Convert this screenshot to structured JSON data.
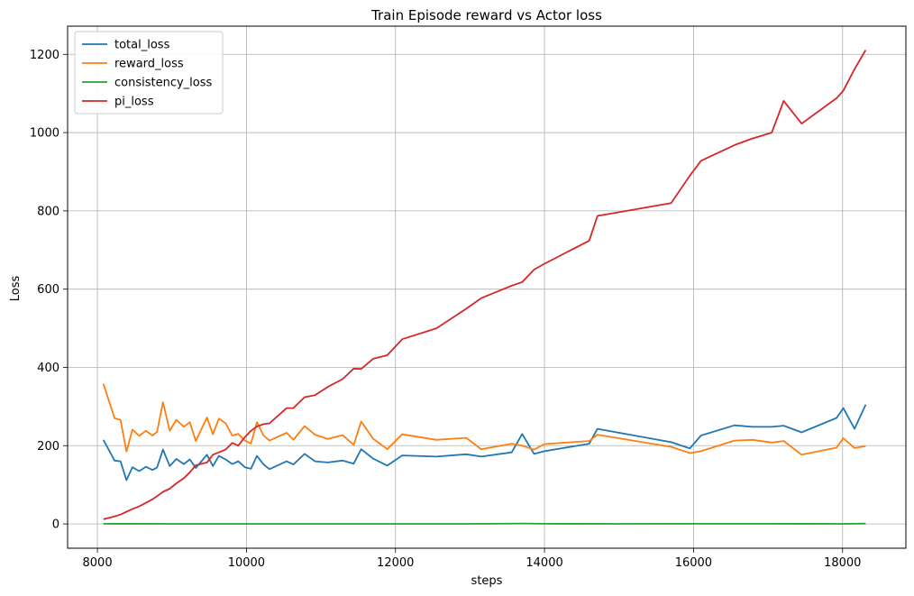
{
  "chart_data": {
    "type": "line",
    "title": "Train Episode reward vs Actor loss",
    "xlabel": "steps",
    "ylabel": "Loss",
    "xlim": [
      7600,
      18850
    ],
    "ylim": [
      -62,
      1272
    ],
    "xticks": [
      8000,
      10000,
      12000,
      14000,
      16000,
      18000
    ],
    "yticks": [
      0,
      200,
      400,
      600,
      800,
      1000,
      1200
    ],
    "grid": true,
    "legend_position": "top-left",
    "series": [
      {
        "name": "total_loss",
        "color": "#1f77b4",
        "points": [
          [
            8080,
            215
          ],
          [
            8230,
            162
          ],
          [
            8310,
            160
          ],
          [
            8390,
            112
          ],
          [
            8470,
            145
          ],
          [
            8560,
            135
          ],
          [
            8650,
            146
          ],
          [
            8740,
            138
          ],
          [
            8800,
            144
          ],
          [
            8880,
            190
          ],
          [
            8970,
            148
          ],
          [
            9060,
            166
          ],
          [
            9160,
            153
          ],
          [
            9240,
            165
          ],
          [
            9320,
            143
          ],
          [
            9470,
            177
          ],
          [
            9550,
            148
          ],
          [
            9630,
            174
          ],
          [
            9720,
            165
          ],
          [
            9810,
            153
          ],
          [
            9890,
            160
          ],
          [
            9980,
            145
          ],
          [
            10060,
            141
          ],
          [
            10140,
            174
          ],
          [
            10230,
            152
          ],
          [
            10310,
            140
          ],
          [
            10540,
            160
          ],
          [
            10630,
            152
          ],
          [
            10780,
            179
          ],
          [
            10920,
            160
          ],
          [
            11090,
            157
          ],
          [
            11290,
            162
          ],
          [
            11440,
            154
          ],
          [
            11540,
            191
          ],
          [
            11700,
            167
          ],
          [
            11890,
            149
          ],
          [
            12090,
            175
          ],
          [
            12550,
            172
          ],
          [
            12950,
            178
          ],
          [
            13150,
            172
          ],
          [
            13560,
            183
          ],
          [
            13700,
            230
          ],
          [
            13860,
            179
          ],
          [
            14000,
            186
          ],
          [
            14600,
            205
          ],
          [
            14710,
            243
          ],
          [
            15700,
            209
          ],
          [
            15950,
            193
          ],
          [
            16100,
            226
          ],
          [
            16550,
            252
          ],
          [
            16790,
            248
          ],
          [
            17050,
            248
          ],
          [
            17210,
            251
          ],
          [
            17450,
            234
          ],
          [
            17920,
            271
          ],
          [
            18010,
            296
          ],
          [
            18160,
            243
          ],
          [
            18310,
            305
          ]
        ]
      },
      {
        "name": "reward_loss",
        "color": "#ff7f0e",
        "points": [
          [
            8080,
            358
          ],
          [
            8230,
            270
          ],
          [
            8310,
            266
          ],
          [
            8390,
            185
          ],
          [
            8470,
            241
          ],
          [
            8560,
            225
          ],
          [
            8650,
            238
          ],
          [
            8740,
            226
          ],
          [
            8800,
            235
          ],
          [
            8880,
            311
          ],
          [
            8970,
            238
          ],
          [
            9060,
            266
          ],
          [
            9160,
            248
          ],
          [
            9240,
            260
          ],
          [
            9320,
            212
          ],
          [
            9470,
            272
          ],
          [
            9550,
            229
          ],
          [
            9630,
            269
          ],
          [
            9720,
            257
          ],
          [
            9810,
            226
          ],
          [
            9890,
            230
          ],
          [
            9980,
            213
          ],
          [
            10060,
            205
          ],
          [
            10140,
            260
          ],
          [
            10230,
            226
          ],
          [
            10310,
            213
          ],
          [
            10540,
            233
          ],
          [
            10630,
            215
          ],
          [
            10780,
            250
          ],
          [
            10920,
            228
          ],
          [
            11090,
            217
          ],
          [
            11290,
            227
          ],
          [
            11440,
            202
          ],
          [
            11540,
            262
          ],
          [
            11700,
            218
          ],
          [
            11890,
            191
          ],
          [
            12090,
            229
          ],
          [
            12550,
            215
          ],
          [
            12950,
            220
          ],
          [
            13150,
            191
          ],
          [
            13560,
            205
          ],
          [
            13700,
            200
          ],
          [
            13860,
            190
          ],
          [
            14000,
            204
          ],
          [
            14600,
            212
          ],
          [
            14710,
            228
          ],
          [
            15700,
            197
          ],
          [
            15950,
            181
          ],
          [
            16100,
            186
          ],
          [
            16550,
            213
          ],
          [
            16790,
            215
          ],
          [
            17050,
            208
          ],
          [
            17210,
            212
          ],
          [
            17450,
            177
          ],
          [
            17920,
            195
          ],
          [
            18010,
            219
          ],
          [
            18160,
            194
          ],
          [
            18310,
            199
          ]
        ]
      },
      {
        "name": "consistency_loss",
        "color": "#2ca02c",
        "points": [
          [
            8080,
            0.5
          ],
          [
            9000,
            0.3
          ],
          [
            10000,
            0.3
          ],
          [
            11000,
            0.3
          ],
          [
            12000,
            0.3
          ],
          [
            13000,
            0.3
          ],
          [
            13700,
            1.2
          ],
          [
            14000,
            0.4
          ],
          [
            15000,
            0.3
          ],
          [
            16000,
            0.5
          ],
          [
            17000,
            0.4
          ],
          [
            18000,
            0.3
          ],
          [
            18310,
            0.8
          ]
        ]
      },
      {
        "name": "pi_loss",
        "color": "#d62728",
        "points": [
          [
            8080,
            12
          ],
          [
            8230,
            19
          ],
          [
            8310,
            24
          ],
          [
            8390,
            31
          ],
          [
            8470,
            38
          ],
          [
            8560,
            45
          ],
          [
            8650,
            54
          ],
          [
            8740,
            63
          ],
          [
            8800,
            71
          ],
          [
            8880,
            82
          ],
          [
            8970,
            90
          ],
          [
            9060,
            104
          ],
          [
            9160,
            117
          ],
          [
            9240,
            132
          ],
          [
            9320,
            150
          ],
          [
            9470,
            157
          ],
          [
            9550,
            177
          ],
          [
            9630,
            183
          ],
          [
            9720,
            190
          ],
          [
            9810,
            207
          ],
          [
            9890,
            200
          ],
          [
            9980,
            222
          ],
          [
            10060,
            238
          ],
          [
            10140,
            249
          ],
          [
            10230,
            255
          ],
          [
            10310,
            257
          ],
          [
            10540,
            296
          ],
          [
            10630,
            296
          ],
          [
            10780,
            324
          ],
          [
            10920,
            329
          ],
          [
            11090,
            350
          ],
          [
            11290,
            370
          ],
          [
            11440,
            397
          ],
          [
            11540,
            396
          ],
          [
            11700,
            422
          ],
          [
            11890,
            431
          ],
          [
            12090,
            472
          ],
          [
            12550,
            500
          ],
          [
            12950,
            550
          ],
          [
            13150,
            577
          ],
          [
            13560,
            609
          ],
          [
            13700,
            618
          ],
          [
            13860,
            650
          ],
          [
            14000,
            665
          ],
          [
            14600,
            724
          ],
          [
            14710,
            787
          ],
          [
            15700,
            820
          ],
          [
            15950,
            890
          ],
          [
            16100,
            928
          ],
          [
            16550,
            968
          ],
          [
            16790,
            985
          ],
          [
            17050,
            1000
          ],
          [
            17210,
            1081
          ],
          [
            17450,
            1023
          ],
          [
            17920,
            1088
          ],
          [
            18010,
            1107
          ],
          [
            18160,
            1162
          ],
          [
            18310,
            1211
          ]
        ]
      }
    ]
  }
}
